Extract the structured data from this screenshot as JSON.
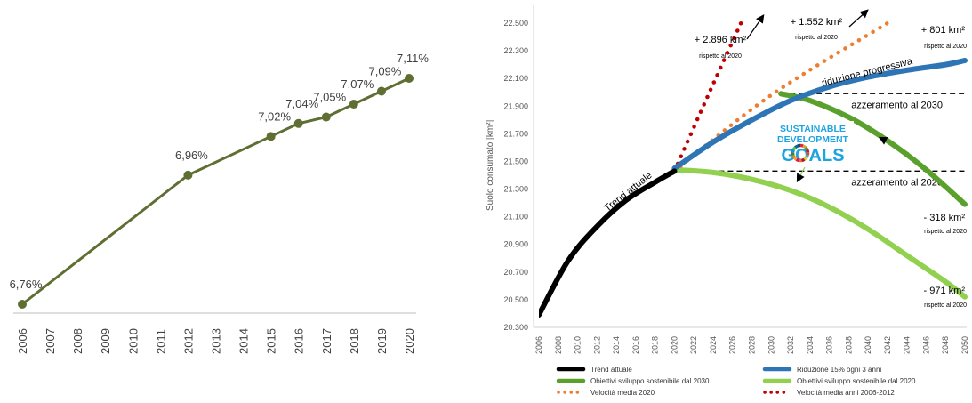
{
  "chart_data": [
    {
      "type": "line",
      "title": "",
      "xlabel": "",
      "ylabel": "",
      "x": [
        "2006",
        "2012",
        "2015",
        "2016",
        "2017",
        "2018",
        "2019",
        "2020"
      ],
      "x_ticks": [
        "2006",
        "2007",
        "2008",
        "2009",
        "2010",
        "2011",
        "2012",
        "2013",
        "2014",
        "2015",
        "2016",
        "2017",
        "2018",
        "2019",
        "2020"
      ],
      "values": [
        6.76,
        6.96,
        7.02,
        7.04,
        7.05,
        7.07,
        7.09,
        7.11
      ],
      "data_labels": [
        "6,76%",
        "6,96%",
        "7,02%",
        "7,04%",
        "7,05%",
        "7,07%",
        "7,09%",
        "7,11%"
      ],
      "series_color": "#5f6f33",
      "grid": false
    },
    {
      "type": "line",
      "title": "",
      "ylabel": "Suolo consumato [km²]",
      "xlabel": "",
      "xlim": [
        2006,
        2050
      ],
      "ylim": [
        20300,
        22500
      ],
      "yticks": [
        "20.300",
        "20.500",
        "20.700",
        "20.900",
        "21.100",
        "21.300",
        "21.500",
        "21.700",
        "21.900",
        "22.100",
        "22.300",
        "22.500"
      ],
      "xticks": [
        "2006",
        "2008",
        "2010",
        "2012",
        "2014",
        "2016",
        "2018",
        "2020",
        "2022",
        "2024",
        "2026",
        "2028",
        "2030",
        "2032",
        "2034",
        "2036",
        "2038",
        "2040",
        "2042",
        "2044",
        "2046",
        "2048",
        "2050"
      ],
      "series": [
        {
          "name": "Trend attuale",
          "color": "#000000",
          "style": "solid",
          "x": [
            2006,
            2009,
            2012,
            2015,
            2018,
            2020
          ],
          "y": [
            20390,
            20780,
            21030,
            21220,
            21350,
            21430
          ]
        },
        {
          "name": "Riduzione 15% ogni 3 anni",
          "color": "#2e75b6",
          "style": "solid",
          "x": [
            2020,
            2024,
            2028,
            2032,
            2036,
            2040,
            2044,
            2048,
            2050
          ],
          "y": [
            21450,
            21640,
            21800,
            21940,
            22040,
            22110,
            22160,
            22200,
            22230
          ]
        },
        {
          "name": "Obiettivi sviluppo sostenibile dal 2030",
          "color": "#5aa02c",
          "style": "solid",
          "x": [
            2031,
            2034,
            2038,
            2042,
            2046,
            2050
          ],
          "y": [
            21990,
            21940,
            21820,
            21650,
            21440,
            21190
          ]
        },
        {
          "name": "Obiettivi sviluppo sostenibile dal 2020",
          "color": "#92d050",
          "style": "solid",
          "x": [
            2020,
            2024,
            2028,
            2032,
            2036,
            2040,
            2044,
            2048,
            2050
          ],
          "y": [
            21440,
            21420,
            21370,
            21290,
            21170,
            21010,
            20820,
            20630,
            20520
          ]
        },
        {
          "name": "Velocità media 2020",
          "color": "#ed7d31",
          "style": "dotted",
          "x": [
            2020,
            2030,
            2042
          ],
          "y": [
            21430,
            21980,
            22500
          ]
        },
        {
          "name": "Velocità media anni 2006-2012",
          "color": "#c00000",
          "style": "dotted",
          "x": [
            2020,
            2024,
            2027
          ],
          "y": [
            21430,
            22060,
            22520
          ]
        }
      ],
      "reference_lines": [
        {
          "label": "azzeramento al 2030",
          "y": 21990,
          "x_from": 2031,
          "x_to": 2050
        },
        {
          "label": "azzeramento al 2020",
          "y": 21430,
          "x_from": 2020,
          "x_to": 2050
        }
      ],
      "annotations": [
        {
          "main": "+ 2.896 km²",
          "sub": "rispetto al 2020"
        },
        {
          "main": "+ 1.552 km²",
          "sub": "rispetto al 2020"
        },
        {
          "main": "+ 801 km²",
          "sub": "rispetto al 2020"
        },
        {
          "main": "- 318 km²",
          "sub": "rispetto al 2020"
        },
        {
          "main": "- 971 km²",
          "sub": "rispetto al 2020"
        }
      ],
      "curve_labels": {
        "trend": "Trend attuale",
        "riduzione": "riduzione progressiva"
      },
      "sdg_logo": {
        "line1": "SUSTAINABLE",
        "line2": "DEVELOPMENT",
        "line3": "GOALS"
      },
      "legend_position": "bottom",
      "grid": false
    }
  ]
}
